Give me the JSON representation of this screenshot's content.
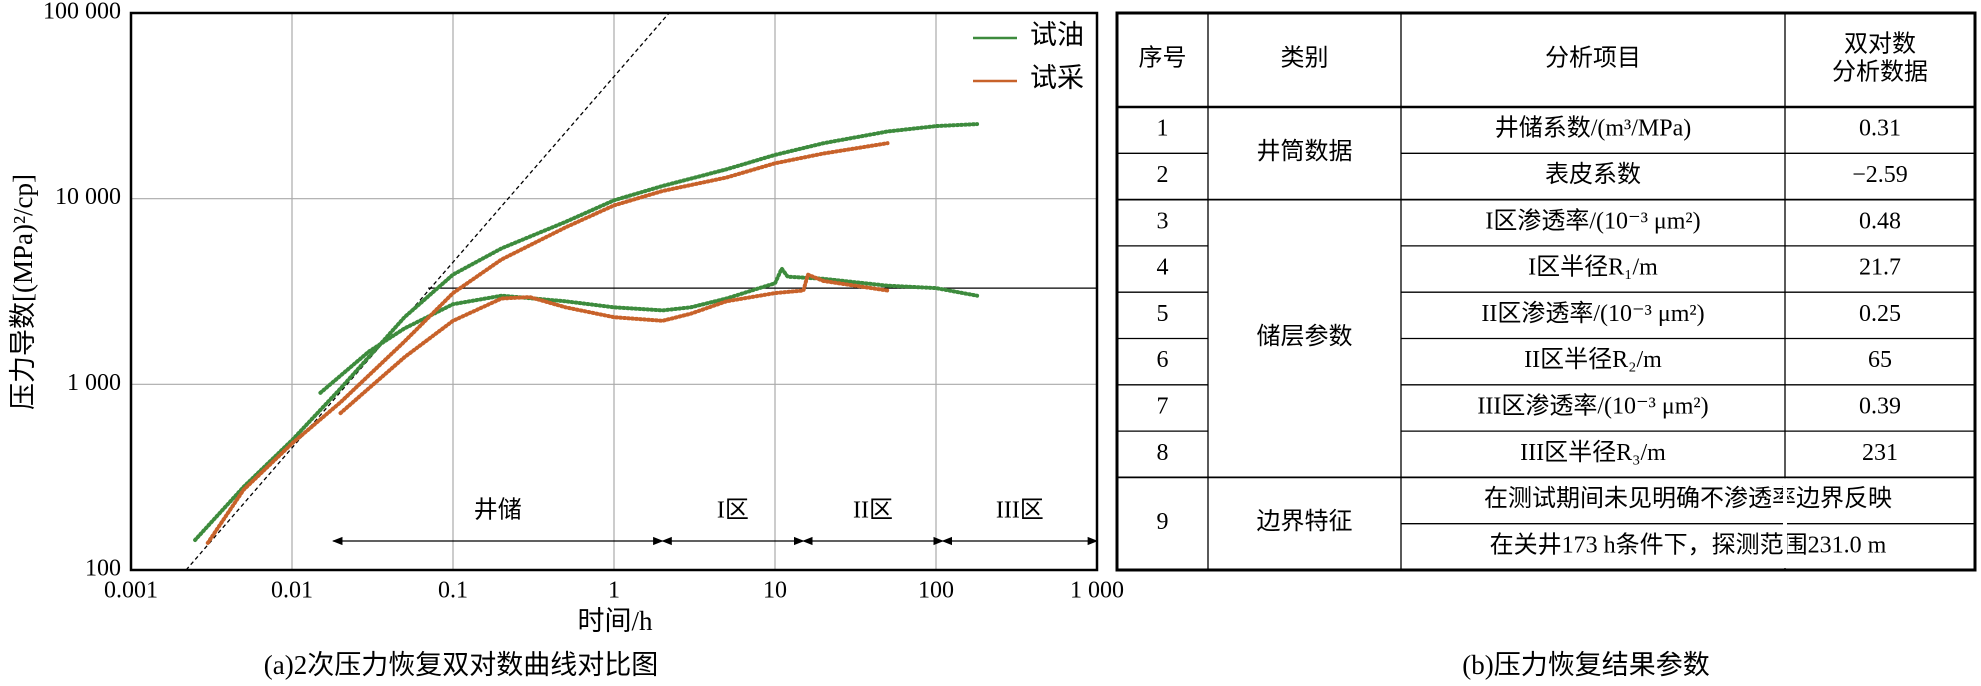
{
  "chart_data": {
    "type": "loglog",
    "x_label": "时间/h",
    "y_label": "压力导数[(MPa)²/cp]",
    "caption": "(a)2次压力恢复双对数曲线对比图",
    "xlim": [
      0.001,
      1000
    ],
    "ylim": [
      100,
      100000
    ],
    "log_x": true,
    "log_y": true,
    "grid": true,
    "legend": "upper right",
    "xticks": [
      0.001,
      0.01,
      0.1,
      1,
      10,
      100,
      {
        "value": 1000,
        "label": "1 000"
      }
    ],
    "yticks": [
      100,
      {
        "value": 1000,
        "label": "1 000"
      },
      {
        "value": 10000,
        "label": "10 000"
      },
      {
        "value": 100000,
        "label": "100 000"
      }
    ],
    "series": [
      {
        "name": "试油",
        "color": "#3d8b3d",
        "pressure_x": [
          0.0025,
          0.005,
          0.01,
          0.02,
          0.05,
          0.1,
          0.2,
          0.5,
          1,
          2,
          5,
          10,
          20,
          50,
          100,
          180
        ],
        "pressure": [
          145,
          280,
          500,
          950,
          2300,
          3900,
          5400,
          7500,
          9800,
          11700,
          14400,
          17200,
          19900,
          23000,
          24600,
          25200
        ],
        "derivative_x": [
          0.015,
          0.03,
          0.05,
          0.1,
          0.2,
          0.5,
          1,
          2,
          3,
          5,
          8,
          10,
          11,
          12,
          20,
          50,
          100,
          180
        ],
        "derivative": [
          900,
          1500,
          2000,
          2700,
          3000,
          2800,
          2600,
          2500,
          2600,
          2900,
          3300,
          3500,
          4200,
          3800,
          3700,
          3400,
          3300,
          3000
        ]
      },
      {
        "name": "试采",
        "color": "#c8622a",
        "pressure_x": [
          0.003,
          0.005,
          0.01,
          0.02,
          0.05,
          0.1,
          0.2,
          0.5,
          1,
          2,
          5,
          10,
          20,
          50
        ],
        "pressure": [
          140,
          270,
          480,
          800,
          1700,
          3100,
          4700,
          7000,
          9200,
          11000,
          13000,
          15500,
          17500,
          19900
        ],
        "derivative_x": [
          0.02,
          0.05,
          0.1,
          0.2,
          0.3,
          0.5,
          1,
          2,
          3,
          5,
          10,
          15,
          16,
          20,
          50
        ],
        "derivative": [
          700,
          1400,
          2200,
          2900,
          2950,
          2600,
          2300,
          2200,
          2400,
          2800,
          3100,
          3200,
          3900,
          3600,
          3200
        ]
      }
    ],
    "unit_slope_line": {
      "x": [
        0.0022,
        2.2
      ],
      "y": [
        100,
        100000
      ]
    },
    "horizontal_line": {
      "x": [
        0.07,
        1000
      ],
      "y": [
        3300,
        3300
      ]
    },
    "regimes": [
      {
        "label": "井储",
        "start": 0.018,
        "end": 2
      },
      {
        "label": "I区",
        "start": 2,
        "end": 15
      },
      {
        "label": "II区",
        "start": 15,
        "end": 110
      },
      {
        "label": "III区",
        "start": 110,
        "end": 1000
      }
    ]
  },
  "table": {
    "caption": "(b)压力恢复结果参数",
    "header": [
      "序号",
      "类别",
      "分析项目",
      [
        "双对数",
        "分析数据"
      ]
    ],
    "groups": [
      {
        "category": "井筒数据",
        "rows": [
          {
            "no": "1",
            "item": "井储系数/(m³/MPa)",
            "value": "0.31"
          },
          {
            "no": "2",
            "item": "表皮系数",
            "value": "−2.59"
          }
        ]
      },
      {
        "category": "储层参数",
        "rows": [
          {
            "no": "3",
            "item": "I区渗透率/(10⁻³ μm²)",
            "value": "0.48"
          },
          {
            "no": "4",
            "item": "I区半径R₁/m",
            "value": "21.7"
          },
          {
            "no": "5",
            "item": "II区渗透率/(10⁻³ μm²)",
            "value": "0.25"
          },
          {
            "no": "6",
            "item": "II区半径R₂/m",
            "value": "65"
          },
          {
            "no": "7",
            "item": "III区渗透率/(10⁻³ μm²)",
            "value": "0.39"
          },
          {
            "no": "8",
            "item": "III区半径R₃/m",
            "value": "231"
          }
        ]
      },
      {
        "category": "边界特征",
        "rows": [
          {
            "no": "9",
            "notes": [
              "在测试期间未见明确不渗透率边界反映",
              "在关井173 h条件下，探测范围231.0 m"
            ]
          }
        ]
      }
    ]
  }
}
